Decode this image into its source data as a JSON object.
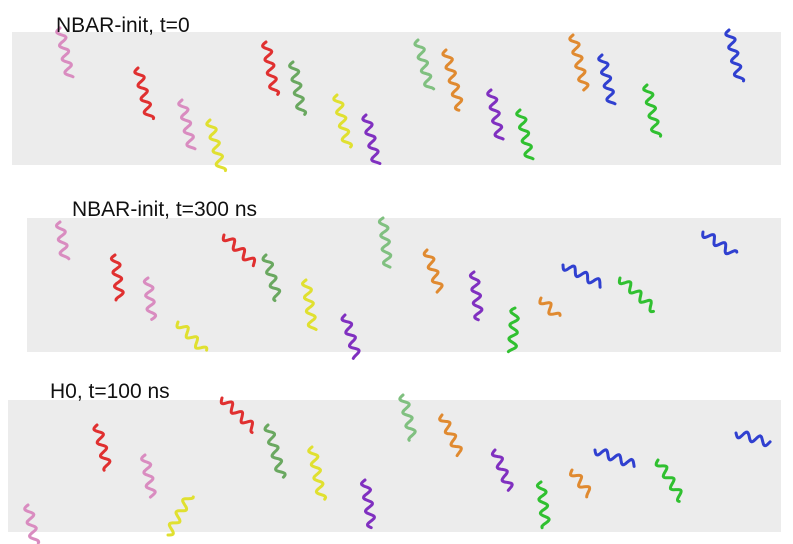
{
  "panels": [
    {
      "label": "NBAR-init, t=0"
    },
    {
      "label": "NBAR-init, t=300 ns"
    },
    {
      "label": "H0, t=100 ns"
    }
  ]
}
